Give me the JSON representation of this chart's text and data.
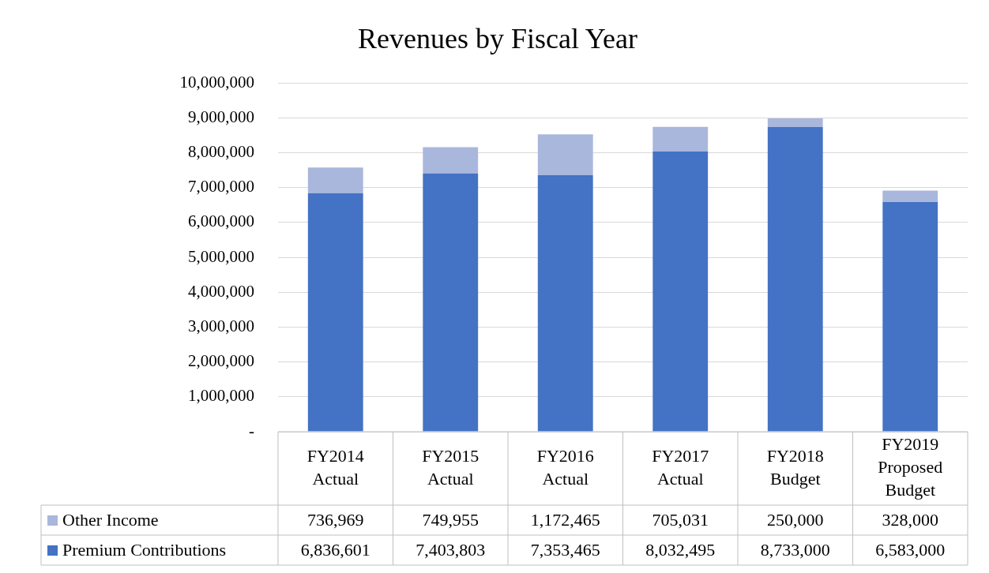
{
  "chart_data": {
    "type": "bar",
    "title": "Revenues by Fiscal Year",
    "stacked": true,
    "legend": "bottom",
    "grid": "y",
    "categories": [
      "FY2014 Actual",
      "FY2015 Actual",
      "FY2016 Actual",
      "FY2017 Actual",
      "FY2018 Budget",
      "FY2019 Proposed Budget"
    ],
    "series": [
      {
        "name": "Premium Contributions",
        "color": "#4472c4",
        "values": [
          6836601,
          7403803,
          7353465,
          8032495,
          8733000,
          6583000
        ],
        "value_labels": [
          "6,836,601",
          "7,403,803",
          "7,353,465",
          "8,032,495",
          "8,733,000",
          "6,583,000"
        ]
      },
      {
        "name": "Other Income",
        "color": "#a9b7dc",
        "values": [
          736969,
          749955,
          1172465,
          705031,
          250000,
          328000
        ],
        "value_labels": [
          "736,969",
          "749,955",
          "1,172,465",
          "705,031",
          "250,000",
          "328,000"
        ]
      }
    ],
    "ylim": [
      0,
      10000000
    ],
    "yticks": [
      {
        "value": 0,
        "label": "-"
      },
      {
        "value": 1000000,
        "label": "1,000,000"
      },
      {
        "value": 2000000,
        "label": "2,000,000"
      },
      {
        "value": 3000000,
        "label": "3,000,000"
      },
      {
        "value": 4000000,
        "label": "4,000,000"
      },
      {
        "value": 5000000,
        "label": "5,000,000"
      },
      {
        "value": 6000000,
        "label": "6,000,000"
      },
      {
        "value": 7000000,
        "label": "7,000,000"
      },
      {
        "value": 8000000,
        "label": "8,000,000"
      },
      {
        "value": 9000000,
        "label": "9,000,000"
      },
      {
        "value": 10000000,
        "label": "10,000,000"
      }
    ]
  }
}
